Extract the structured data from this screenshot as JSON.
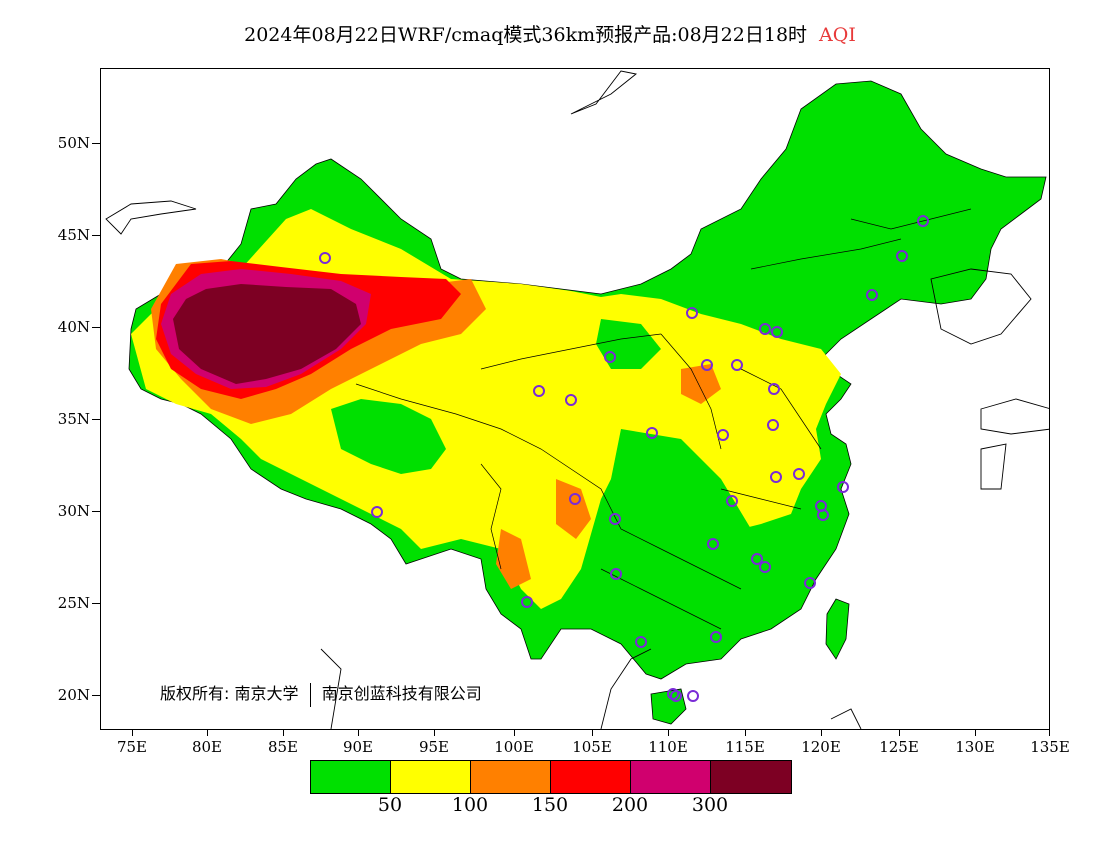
{
  "title": {
    "main": "2024年08月22日WRF/cmaq模式36km预报产品:08月22日18时",
    "variable": "AQI",
    "variable_color": "#e83a3a"
  },
  "axes": {
    "y_labels": [
      "50N",
      "45N",
      "40N",
      "35N",
      "30N",
      "25N",
      "20N"
    ],
    "x_labels": [
      "75E",
      "80E",
      "85E",
      "90E",
      "95E",
      "100E",
      "105E",
      "110E",
      "115E",
      "120E",
      "125E",
      "130E",
      "135E"
    ]
  },
  "copyright": {
    "prefix": "版权所有:",
    "org1": "南京大学",
    "org2": "南京创蓝科技有限公司"
  },
  "legend": {
    "colors": [
      "#00e000",
      "#ffff00",
      "#ff8000",
      "#ff0000",
      "#d0006e",
      "#7d0023"
    ],
    "labels": [
      "50",
      "100",
      "150",
      "200",
      "300"
    ]
  },
  "stations": {
    "marker_color": "#7a2bd6",
    "count": 36
  }
}
